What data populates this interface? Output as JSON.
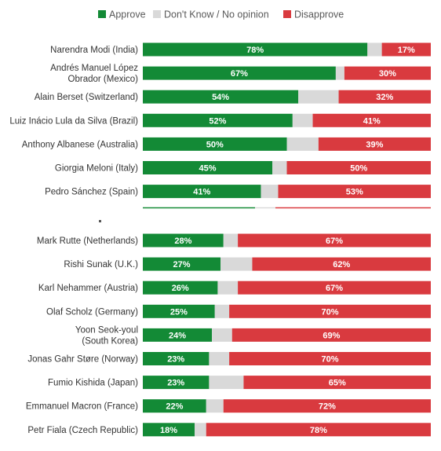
{
  "colors": {
    "approve": "#138a36",
    "dont_know": "#d9d9d9",
    "disapprove": "#d93a3f"
  },
  "chart_data": {
    "type": "bar",
    "orientation": "horizontal",
    "stacked": true,
    "title": "",
    "xlabel": "",
    "ylabel": "",
    "xlim": [
      0,
      100
    ],
    "value_unit": "%",
    "grid": false,
    "legend_position": "top",
    "series": [
      {
        "name": "Approve",
        "color": "#138a36",
        "values": [
          78,
          67,
          54,
          52,
          50,
          45,
          41,
          28,
          27,
          26,
          25,
          24,
          23,
          23,
          22,
          18
        ]
      },
      {
        "name": "Don't Know / No opinion",
        "color": "#d9d9d9",
        "values": [
          5,
          3,
          14,
          7,
          11,
          5,
          6,
          5,
          11,
          7,
          5,
          7,
          7,
          12,
          6,
          4
        ]
      },
      {
        "name": "Disapprove",
        "color": "#d93a3f",
        "values": [
          17,
          30,
          32,
          41,
          39,
          50,
          53,
          67,
          62,
          67,
          70,
          69,
          70,
          65,
          72,
          78
        ]
      }
    ],
    "categories": [
      [
        "Narendra Modi (India)"
      ],
      [
        "Andrés Manuel López",
        "Obrador (Mexico)"
      ],
      [
        "Alain Berset (Switzerland)"
      ],
      [
        "Luiz Inácio Lula da Silva (Brazil)"
      ],
      [
        "Anthony Albanese (Australia)"
      ],
      [
        "Giorgia Meloni (Italy)"
      ],
      [
        "Pedro Sánchez (Spain)"
      ],
      [
        "Mark Rutte (Netherlands)"
      ],
      [
        "Rishi Sunak (U.K.)"
      ],
      [
        "Karl Nehammer (Austria)"
      ],
      [
        "Olaf Scholz (Germany)"
      ],
      [
        "Yoon Seok-youl",
        "(South Korea)"
      ],
      [
        "Jonas Gahr Støre (Norway)"
      ],
      [
        "Fumio Kishida (Japan)"
      ],
      [
        "Emmanuel Macron (France)"
      ],
      [
        "Petr Fiala (Czech Republic)"
      ]
    ],
    "approve_labels": [
      "78%",
      "67%",
      "54%",
      "52%",
      "50%",
      "45%",
      "41%",
      "28%",
      "27%",
      "26%",
      "25%",
      "24%",
      "23%",
      "23%",
      "22%",
      "18%"
    ],
    "disapprove_labels": [
      "17%",
      "30%",
      "32%",
      "41%",
      "39%",
      "50%",
      "53%",
      "67%",
      "62%",
      "67%",
      "70%",
      "69%",
      "70%",
      "65%",
      "72%",
      "78%"
    ]
  }
}
